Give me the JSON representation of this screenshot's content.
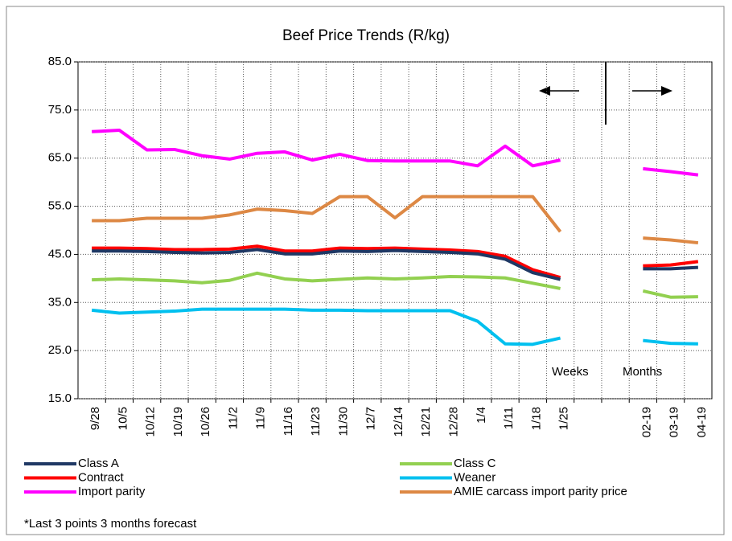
{
  "chart_data": {
    "type": "line",
    "title": "Beef Price Trends (R/kg)",
    "categories": [
      "9/28",
      "10/5",
      "10/12",
      "10/19",
      "10/26",
      "11/2",
      "11/9",
      "11/16",
      "11/23",
      "11/30",
      "12/7",
      "12/14",
      "12/21",
      "12/28",
      "1/4",
      "1/11",
      "1/18",
      "1/25",
      null,
      null,
      "02-19",
      "03-19",
      "04-19"
    ],
    "series": [
      {
        "name": "Class A",
        "color": "#1f3864",
        "values": [
          45.7,
          45.7,
          45.6,
          45.4,
          45.3,
          45.4,
          46.0,
          45.1,
          45.1,
          45.7,
          45.6,
          45.8,
          45.6,
          45.4,
          45.1,
          44.0,
          41.2,
          39.8,
          null,
          null,
          42.0,
          42.0,
          42.3
        ]
      },
      {
        "name": "Class C",
        "color": "#92d050",
        "values": [
          39.7,
          39.9,
          39.7,
          39.5,
          39.1,
          39.6,
          41.1,
          39.9,
          39.5,
          39.8,
          40.1,
          39.9,
          40.1,
          40.4,
          40.3,
          40.1,
          39.0,
          37.9,
          null,
          null,
          37.4,
          36.1,
          36.2
        ]
      },
      {
        "name": "Contract",
        "color": "#ff0000",
        "values": [
          46.3,
          46.3,
          46.2,
          46.0,
          46.0,
          46.1,
          46.7,
          45.7,
          45.7,
          46.3,
          46.2,
          46.3,
          46.1,
          45.9,
          45.6,
          44.6,
          41.8,
          40.2,
          null,
          null,
          42.6,
          42.8,
          43.5
        ]
      },
      {
        "name": "Weaner",
        "color": "#00c0ef",
        "values": [
          33.4,
          32.8,
          33.0,
          33.2,
          33.6,
          33.6,
          33.6,
          33.6,
          33.4,
          33.4,
          33.3,
          33.3,
          33.3,
          33.3,
          31.1,
          26.4,
          26.3,
          27.6,
          null,
          null,
          27.1,
          26.5,
          26.4
        ]
      },
      {
        "name": "Import parity",
        "color": "#ff00ff",
        "values": [
          70.5,
          70.8,
          66.7,
          66.8,
          65.5,
          64.8,
          66.0,
          66.3,
          64.6,
          65.8,
          64.5,
          64.4,
          64.4,
          64.4,
          63.4,
          67.5,
          63.4,
          64.6,
          null,
          null,
          62.8,
          62.2,
          61.5
        ]
      },
      {
        "name": "AMIE carcass import parity price",
        "color": "#dd8844",
        "values": [
          52.0,
          52.0,
          52.5,
          52.5,
          52.5,
          53.2,
          54.4,
          54.1,
          53.5,
          57.0,
          57.0,
          52.6,
          57.0,
          57.0,
          57.0,
          57.0,
          57.0,
          49.7,
          null,
          null,
          48.4,
          48.0,
          47.4
        ]
      }
    ],
    "ylim": [
      15,
      85
    ],
    "yticks": [
      {
        "value": 15,
        "label": "15.0"
      },
      {
        "value": 25,
        "label": "25.0"
      },
      {
        "value": 35,
        "label": "35.0"
      },
      {
        "value": 45,
        "label": "45.0"
      },
      {
        "value": 55,
        "label": "55.0"
      },
      {
        "value": 65,
        "label": "65.0"
      },
      {
        "value": 75,
        "label": "75.0"
      },
      {
        "value": 85,
        "label": "85.0"
      }
    ],
    "grid": true,
    "legend": "bottom",
    "annotations": [
      "Weeks",
      "Months"
    ],
    "footnote": "*Last 3 points 3 months forecast"
  }
}
